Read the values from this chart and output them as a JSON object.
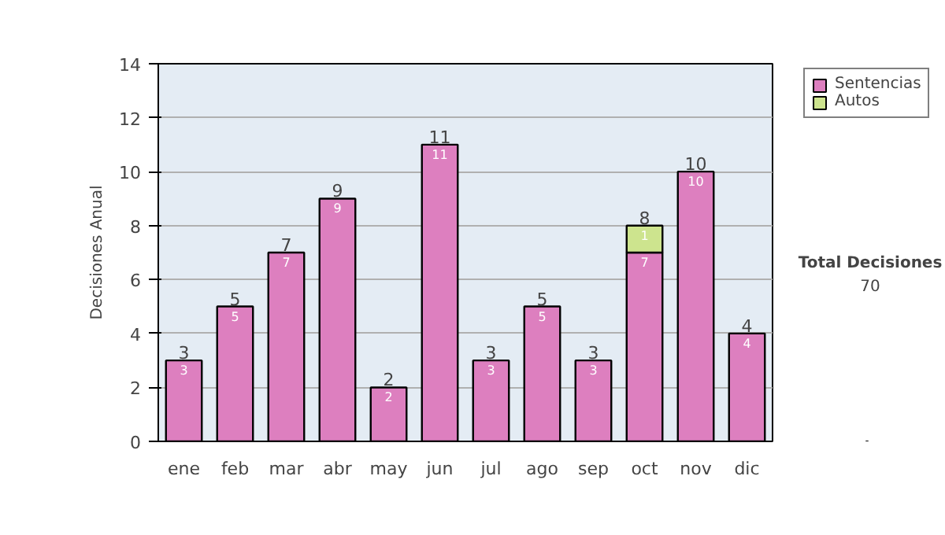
{
  "chart_data": {
    "type": "bar",
    "stacked": true,
    "ylabel": "Decisiones Anual",
    "categories": [
      "ene",
      "feb",
      "mar",
      "abr",
      "may",
      "jun",
      "jul",
      "ago",
      "sep",
      "oct",
      "nov",
      "dic"
    ],
    "series": [
      {
        "name": "Sentencias",
        "color": "#dd7fbf",
        "values": [
          3,
          5,
          7,
          9,
          2,
          11,
          3,
          5,
          3,
          7,
          10,
          4
        ],
        "value_labels": [
          "3",
          "5",
          "7",
          "9",
          "2",
          "11",
          "3",
          "5",
          "3",
          "7",
          "10",
          "4"
        ]
      },
      {
        "name": "Autos",
        "color": "#cde48e",
        "values": [
          0,
          0,
          0,
          0,
          0,
          0,
          0,
          0,
          0,
          1,
          0,
          0
        ],
        "value_labels": [
          null,
          null,
          null,
          null,
          null,
          null,
          null,
          null,
          null,
          "1",
          null,
          null
        ]
      }
    ],
    "totals": [
      "3",
      "5",
      "7",
      "9",
      "2",
      "11",
      "3",
      "5",
      "3",
      "8",
      "10",
      "4"
    ],
    "ylim": [
      0,
      14
    ],
    "yticks": [
      0,
      2,
      4,
      6,
      8,
      10,
      12,
      14
    ],
    "grid": "y",
    "legend": "right",
    "annotations": [
      "Total Decisiones",
      "70"
    ]
  }
}
